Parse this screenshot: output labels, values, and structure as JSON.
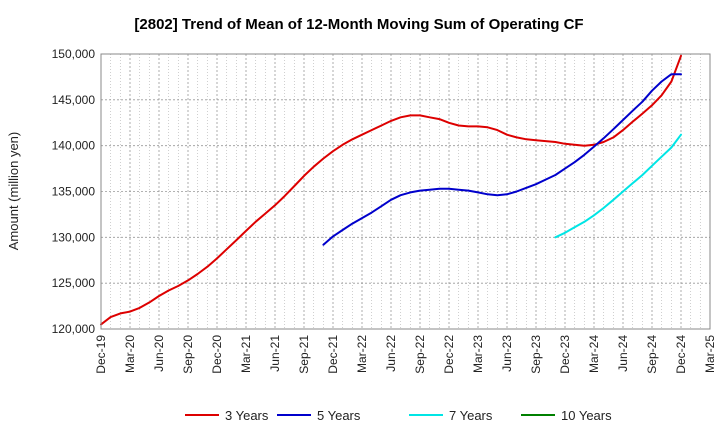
{
  "chart_data": {
    "type": "line",
    "title": "[2802]  Trend of Mean of 12-Month Moving Sum of Operating CF",
    "xlabel": "",
    "ylabel": "Amount (million yen)",
    "ylim": [
      120000,
      150000
    ],
    "yticks": [
      120000,
      125000,
      130000,
      135000,
      140000,
      145000,
      150000
    ],
    "ytick_labels": [
      "120,000",
      "125,000",
      "130,000",
      "135,000",
      "140,000",
      "145,000",
      "150,000"
    ],
    "x_labels": [
      "Dec-19",
      "Mar-20",
      "Jun-20",
      "Sep-20",
      "Dec-20",
      "Mar-21",
      "Jun-21",
      "Sep-21",
      "Dec-21",
      "Mar-22",
      "Jun-22",
      "Sep-22",
      "Dec-22",
      "Mar-23",
      "Jun-23",
      "Sep-23",
      "Dec-23",
      "Mar-24",
      "Jun-24",
      "Sep-24",
      "Dec-24",
      "Mar-25"
    ],
    "grid": true,
    "legend_position": "bottom",
    "series": [
      {
        "name": "3 Years",
        "color": "#dd0000",
        "x": [
          0,
          0.33,
          0.67,
          1,
          1.33,
          1.67,
          2,
          2.33,
          2.67,
          3,
          3.33,
          3.67,
          4,
          4.33,
          4.67,
          5,
          5.33,
          5.67,
          6,
          6.33,
          6.67,
          7,
          7.33,
          7.67,
          8,
          8.33,
          8.67,
          9,
          9.33,
          9.67,
          10,
          10.33,
          10.67,
          11,
          11.33,
          11.67,
          12,
          12.33,
          12.67,
          13,
          13.33,
          13.67,
          14,
          14.33,
          14.67,
          15,
          15.33,
          15.67,
          16,
          16.33,
          16.67,
          17,
          17.33,
          17.67,
          18,
          18.33,
          18.67,
          19,
          19.33,
          19.67,
          20
        ],
        "values": [
          120500,
          121300,
          121700,
          121900,
          122300,
          122900,
          123600,
          124200,
          124700,
          125300,
          126000,
          126800,
          127700,
          128700,
          129700,
          130700,
          131700,
          132600,
          133500,
          134500,
          135600,
          136700,
          137700,
          138600,
          139400,
          140100,
          140700,
          141200,
          141700,
          142200,
          142700,
          143100,
          143300,
          143300,
          143100,
          142900,
          142500,
          142200,
          142100,
          142100,
          142000,
          141700,
          141200,
          140900,
          140700,
          140600,
          140500,
          140400,
          140200,
          140100,
          140000,
          140100,
          140400,
          140900,
          141700,
          142600,
          143500,
          144400,
          145500,
          147000,
          149800
        ]
      },
      {
        "name": "5 Years",
        "color": "#0000cc",
        "x": [
          7.67,
          8,
          8.33,
          8.67,
          9,
          9.33,
          9.67,
          10,
          10.33,
          10.67,
          11,
          11.33,
          11.67,
          12,
          12.33,
          12.67,
          13,
          13.33,
          13.67,
          14,
          14.33,
          14.67,
          15,
          15.33,
          15.67,
          16,
          16.33,
          16.67,
          17,
          17.33,
          17.67,
          18,
          18.33,
          18.67,
          19,
          19.33,
          19.67,
          20
        ],
        "values": [
          129200,
          130100,
          130800,
          131500,
          132100,
          132700,
          133400,
          134100,
          134600,
          134900,
          135100,
          135200,
          135300,
          135300,
          135200,
          135100,
          134900,
          134700,
          134600,
          134700,
          135000,
          135400,
          135800,
          136300,
          136800,
          137500,
          138200,
          139000,
          139900,
          140800,
          141800,
          142800,
          143800,
          144800,
          146000,
          147000,
          147800,
          147800
        ]
      },
      {
        "name": "7 Years",
        "color": "#00e5e5",
        "x": [
          15.67,
          16,
          16.33,
          16.67,
          17,
          17.33,
          17.67,
          18,
          18.33,
          18.67,
          19,
          19.33,
          19.67,
          20
        ],
        "values": [
          130000,
          130500,
          131100,
          131700,
          132400,
          133200,
          134100,
          135000,
          135900,
          136800,
          137800,
          138800,
          139800,
          141200
        ]
      },
      {
        "name": "10 Years",
        "color": "#008000",
        "x": [],
        "values": []
      }
    ]
  }
}
